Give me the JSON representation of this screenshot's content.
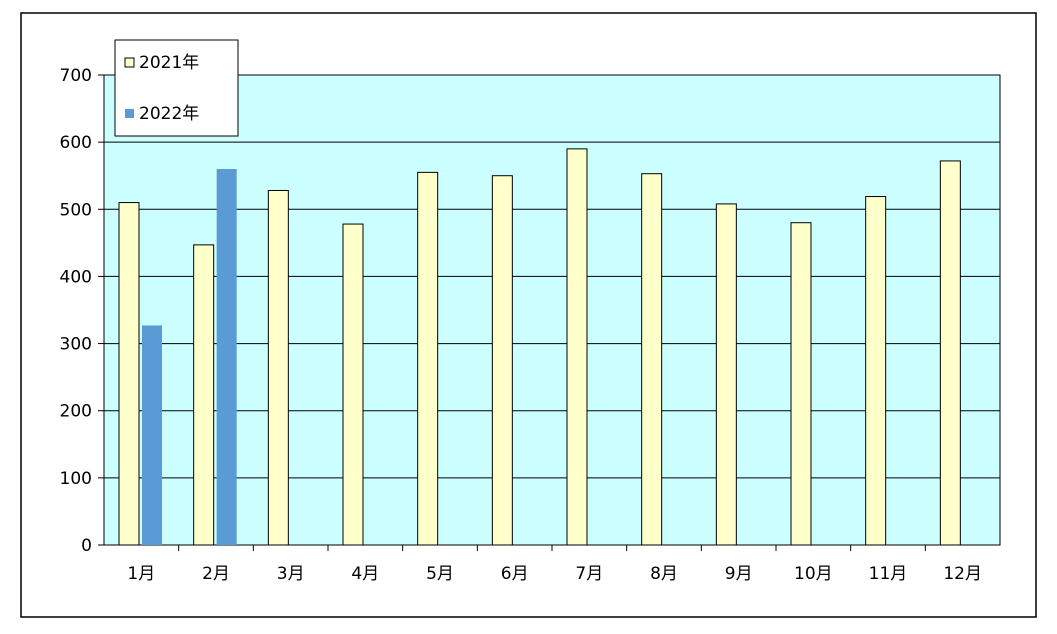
{
  "chart_data": {
    "type": "bar",
    "title": "",
    "xlabel": "",
    "ylabel": "",
    "categories": [
      "1月",
      "2月",
      "3月",
      "4月",
      "5月",
      "6月",
      "7月",
      "8月",
      "9月",
      "10月",
      "11月",
      "12月"
    ],
    "series": [
      {
        "name": "2021年",
        "color": "#FFFFCC",
        "values": [
          510,
          447,
          528,
          478,
          555,
          550,
          590,
          553,
          508,
          480,
          519,
          572
        ]
      },
      {
        "name": "2022年",
        "color": "#5B9BD5",
        "values": [
          327,
          560,
          null,
          null,
          null,
          null,
          null,
          null,
          null,
          null,
          null,
          null
        ]
      }
    ],
    "ylim": [
      0,
      700
    ],
    "yticks": [
      0,
      100,
      200,
      300,
      400,
      500,
      600,
      700
    ],
    "grid": true,
    "legend_position": "top-left",
    "plot_background": "#CCFFFF"
  }
}
